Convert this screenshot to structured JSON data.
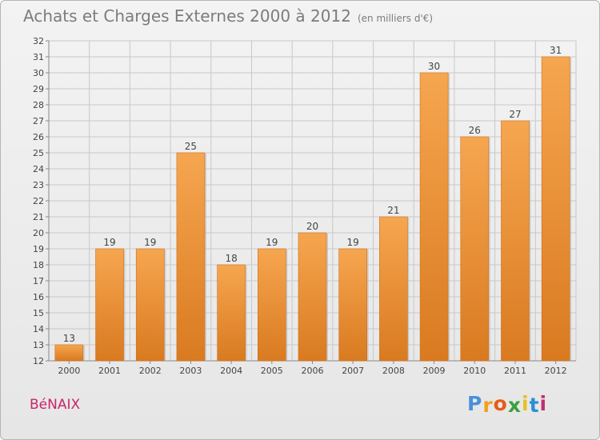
{
  "header": {
    "title": "Achats et Charges Externes 2000 à 2012",
    "subtitle": "(en milliers d'€)"
  },
  "footer": {
    "commune": "BéNAIX",
    "logo_letters": [
      "P",
      "r",
      "o",
      "x",
      "i",
      "t",
      "i"
    ],
    "logo_colors": [
      "#4a90d9",
      "#f0a020",
      "#e85a1a",
      "#3aa040",
      "#e8c020",
      "#2a8fd8",
      "#c03070"
    ]
  },
  "colors": {
    "bar_light": "#f6a650",
    "bar_dark": "#d97a20",
    "grid": "#c8c8c8",
    "axis": "#888888",
    "text": "#444444"
  },
  "chart_data": {
    "type": "bar",
    "title": "Achats et Charges Externes 2000 à 2012",
    "subtitle": "(en milliers d'€)",
    "categories": [
      "2000",
      "2001",
      "2002",
      "2003",
      "2004",
      "2005",
      "2006",
      "2007",
      "2008",
      "2009",
      "2010",
      "2011",
      "2012"
    ],
    "values": [
      13,
      19,
      19,
      25,
      18,
      19,
      20,
      19,
      21,
      30,
      26,
      27,
      31
    ],
    "ylim": [
      12,
      32
    ],
    "yticks": [
      12,
      13,
      14,
      15,
      16,
      17,
      18,
      19,
      20,
      21,
      22,
      23,
      24,
      25,
      26,
      27,
      28,
      29,
      30,
      31,
      32
    ],
    "xlabel": "",
    "ylabel": "",
    "grid": true,
    "legend": "none"
  }
}
